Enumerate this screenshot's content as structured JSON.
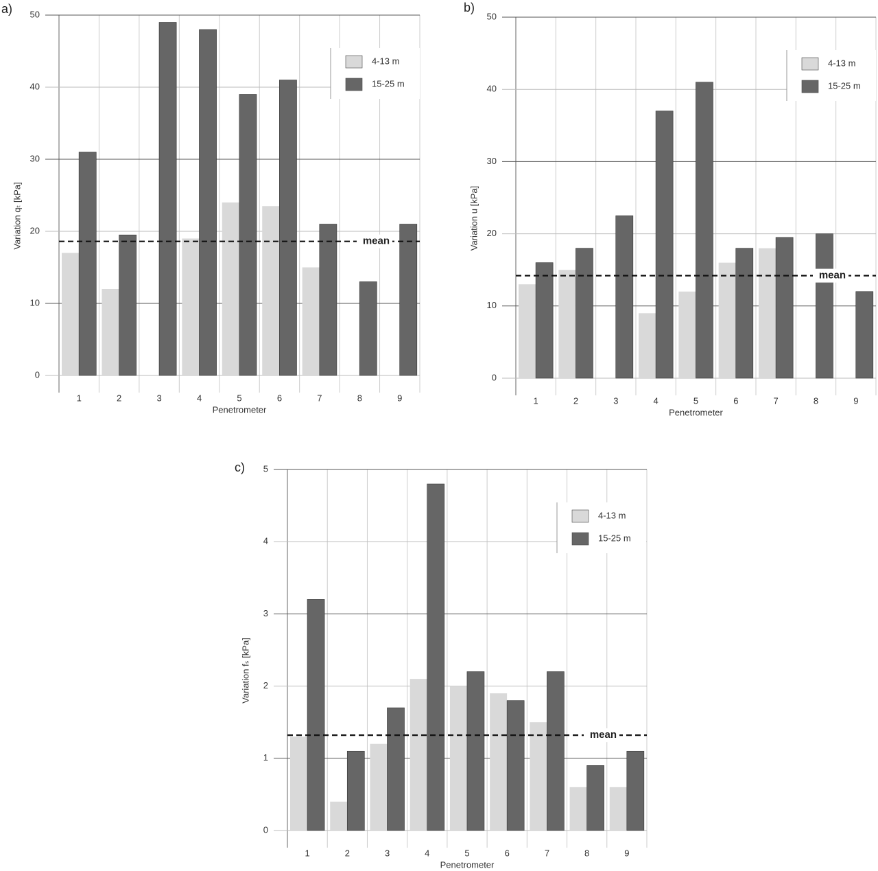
{
  "chart_data": [
    {
      "type": "bar",
      "title": "a)",
      "y_label": "Variation qₜ [kPa]",
      "x_label": "Penetrometer",
      "categories": [
        "1",
        "2",
        "3",
        "4",
        "5",
        "6",
        "7",
        "8",
        "9"
      ],
      "series": [
        {
          "name": "4-13 m",
          "color": "#d9d9d9",
          "values": [
            17,
            12,
            0,
            19,
            24,
            23.5,
            15,
            0,
            0
          ]
        },
        {
          "name": "15-25 m",
          "color": "#666666",
          "values": [
            31,
            19.5,
            49,
            48,
            39,
            41,
            21,
            13,
            21
          ]
        }
      ],
      "mean": 18.6,
      "mean_label": "mean",
      "ylim": [
        0,
        50
      ],
      "yticks": [
        0,
        10,
        20,
        30,
        40,
        50
      ],
      "grid": true
    },
    {
      "type": "bar",
      "title": "b)",
      "y_label": "Variation u [kPa]",
      "x_label": "Penetrometer",
      "categories": [
        "1",
        "2",
        "3",
        "4",
        "5",
        "6",
        "7",
        "8",
        "9"
      ],
      "series": [
        {
          "name": "4-13 m",
          "color": "#d9d9d9",
          "values": [
            13,
            15,
            0,
            9,
            12,
            16,
            18,
            0,
            0
          ]
        },
        {
          "name": "15-25 m",
          "color": "#666666",
          "values": [
            16,
            18,
            22.5,
            37,
            41,
            18,
            19.5,
            20,
            12
          ]
        }
      ],
      "mean": 14.2,
      "mean_label": "mean",
      "ylim": [
        0,
        50
      ],
      "yticks": [
        0,
        10,
        20,
        30,
        40,
        50
      ],
      "grid": true
    },
    {
      "type": "bar",
      "title": "c)",
      "y_label": "Variation fₛ [kPa]",
      "x_label": "Penetrometer",
      "categories": [
        "1",
        "2",
        "3",
        "4",
        "5",
        "6",
        "7",
        "8",
        "9"
      ],
      "series": [
        {
          "name": "4-13 m",
          "color": "#d9d9d9",
          "values": [
            1.3,
            0.4,
            1.2,
            2.1,
            2.0,
            1.9,
            1.5,
            0.6,
            0.6
          ]
        },
        {
          "name": "15-25 m",
          "color": "#666666",
          "values": [
            3.2,
            1.1,
            1.7,
            4.8,
            2.2,
            1.8,
            2.2,
            0.9,
            1.1
          ]
        }
      ],
      "mean": 1.32,
      "mean_label": "mean",
      "ylim": [
        0,
        5
      ],
      "yticks": [
        0,
        1,
        2,
        3,
        4,
        5
      ],
      "grid": true
    }
  ]
}
